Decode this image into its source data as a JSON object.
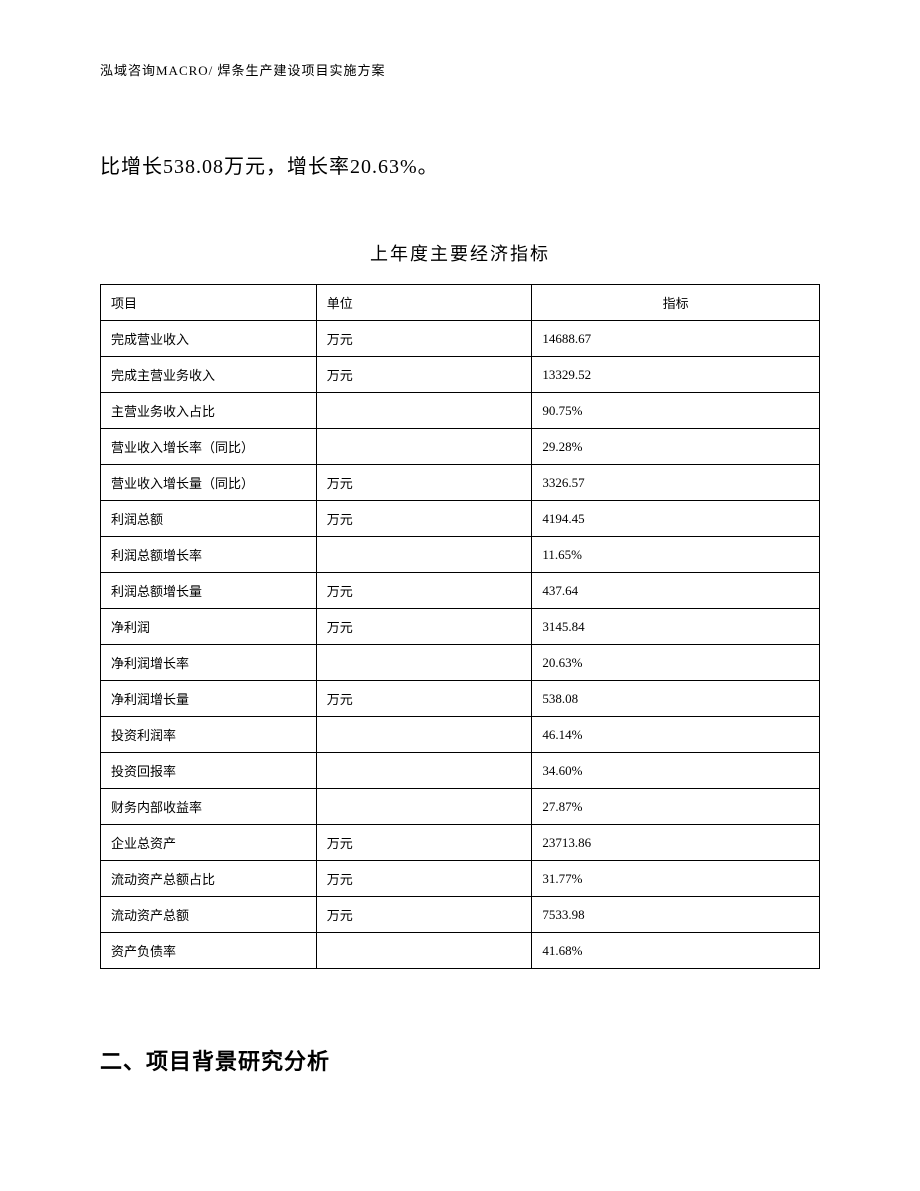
{
  "header": {
    "text": "泓域咨询MACRO/ 焊条生产建设项目实施方案"
  },
  "paragraph": {
    "text": "比增长538.08万元，增长率20.63%。"
  },
  "table": {
    "title": "上年度主要经济指标",
    "columns": {
      "item": "项目",
      "unit": "单位",
      "value": "指标"
    },
    "rows": [
      {
        "item": "完成营业收入",
        "unit": "万元",
        "value": "14688.67"
      },
      {
        "item": "完成主营业务收入",
        "unit": "万元",
        "value": "13329.52"
      },
      {
        "item": "主营业务收入占比",
        "unit": "",
        "value": "90.75%"
      },
      {
        "item": "营业收入增长率（同比）",
        "unit": "",
        "value": "29.28%"
      },
      {
        "item": "营业收入增长量（同比）",
        "unit": "万元",
        "value": "3326.57"
      },
      {
        "item": "利润总额",
        "unit": "万元",
        "value": "4194.45"
      },
      {
        "item": "利润总额增长率",
        "unit": "",
        "value": "11.65%"
      },
      {
        "item": "利润总额增长量",
        "unit": "万元",
        "value": "437.64"
      },
      {
        "item": "净利润",
        "unit": "万元",
        "value": "3145.84"
      },
      {
        "item": "净利润增长率",
        "unit": "",
        "value": "20.63%"
      },
      {
        "item": "净利润增长量",
        "unit": "万元",
        "value": "538.08"
      },
      {
        "item": "投资利润率",
        "unit": "",
        "value": "46.14%"
      },
      {
        "item": "投资回报率",
        "unit": "",
        "value": "34.60%"
      },
      {
        "item": "财务内部收益率",
        "unit": "",
        "value": "27.87%"
      },
      {
        "item": "企业总资产",
        "unit": "万元",
        "value": "23713.86"
      },
      {
        "item": "流动资产总额占比",
        "unit": "万元",
        "value": "31.77%"
      },
      {
        "item": "流动资产总额",
        "unit": "万元",
        "value": "7533.98"
      },
      {
        "item": "资产负债率",
        "unit": "",
        "value": "41.68%"
      }
    ]
  },
  "section": {
    "heading": "二、项目背景研究分析"
  }
}
